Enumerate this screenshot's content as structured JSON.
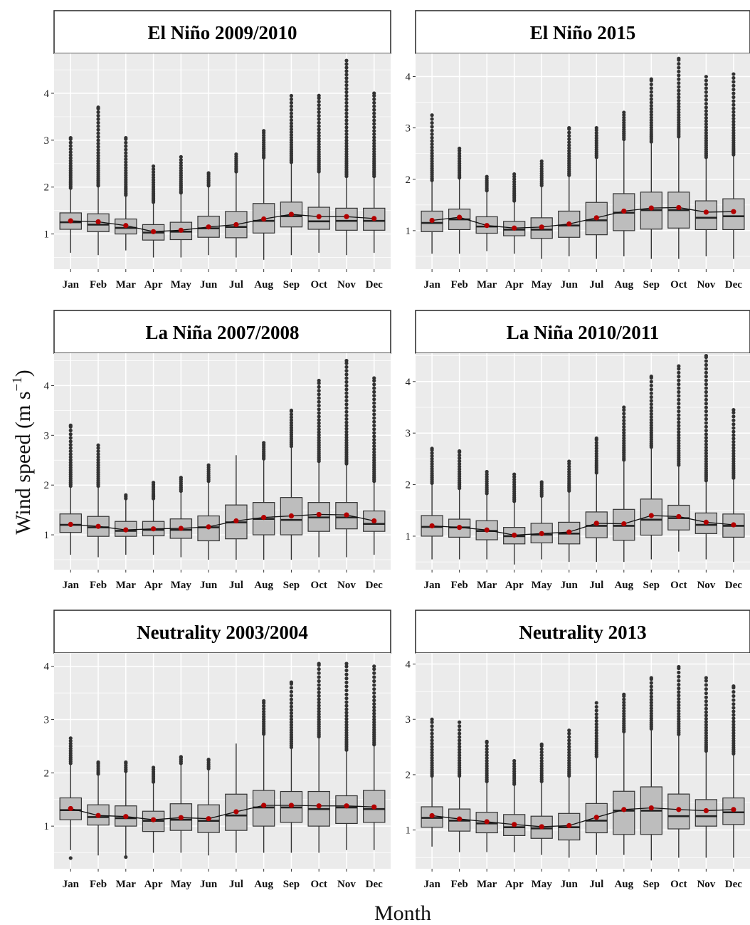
{
  "axes": {
    "ylabel": "Wind speed (m s",
    "ylabel_sup": "−1",
    "ylabel_end": ")",
    "xlabel": "Month"
  },
  "style": {
    "panel_bg": "#ebebeb",
    "grid": "#ffffff",
    "box_fill": "#bdbdbd",
    "box_line": "#333333",
    "outlier": "#333333",
    "mean_point": "#b30000",
    "mean_line": "#111111"
  },
  "chart_data": {
    "type": "boxplot",
    "months": [
      "Jan",
      "Feb",
      "Mar",
      "Apr",
      "May",
      "Jun",
      "Jul",
      "Aug",
      "Sep",
      "Oct",
      "Nov",
      "Dec"
    ],
    "panels": [
      {
        "title": "El Niño 2009/2010",
        "ylim": [
          0.25,
          4.85
        ],
        "yticks": [
          1,
          2,
          3,
          4
        ],
        "boxes": [
          {
            "lw": 0.6,
            "q1": 1.1,
            "med": 1.25,
            "q3": 1.45,
            "uw": 1.95,
            "omax": 3.05,
            "mean": 1.28
          },
          {
            "lw": 0.55,
            "q1": 1.05,
            "med": 1.2,
            "q3": 1.43,
            "uw": 2.0,
            "omax": 3.7,
            "mean": 1.26
          },
          {
            "lw": 0.65,
            "q1": 1.0,
            "med": 1.13,
            "q3": 1.32,
            "uw": 1.8,
            "omax": 3.05,
            "mean": 1.18
          },
          {
            "lw": 0.5,
            "q1": 0.87,
            "med": 1.03,
            "q3": 1.2,
            "uw": 1.65,
            "omax": 2.45,
            "mean": 1.05
          },
          {
            "lw": 0.5,
            "q1": 0.88,
            "med": 1.05,
            "q3": 1.25,
            "uw": 1.85,
            "omax": 2.65,
            "mean": 1.08
          },
          {
            "lw": 0.55,
            "q1": 0.93,
            "med": 1.12,
            "q3": 1.38,
            "uw": 2.0,
            "omax": 2.3,
            "mean": 1.15
          },
          {
            "lw": 0.5,
            "q1": 0.92,
            "med": 1.15,
            "q3": 1.48,
            "uw": 2.3,
            "omax": 2.7,
            "mean": 1.2
          },
          {
            "lw": 0.45,
            "q1": 1.02,
            "med": 1.28,
            "q3": 1.65,
            "uw": 2.6,
            "omax": 3.2,
            "mean": 1.32
          },
          {
            "lw": 0.55,
            "q1": 1.15,
            "med": 1.38,
            "q3": 1.68,
            "uw": 2.5,
            "omax": 3.95,
            "mean": 1.42
          },
          {
            "lw": 0.6,
            "q1": 1.1,
            "med": 1.27,
            "q3": 1.57,
            "uw": 2.3,
            "omax": 3.95,
            "mean": 1.37
          },
          {
            "lw": 0.55,
            "q1": 1.08,
            "med": 1.28,
            "q3": 1.55,
            "uw": 2.2,
            "omax": 4.7,
            "mean": 1.37
          },
          {
            "lw": 0.6,
            "q1": 1.08,
            "med": 1.28,
            "q3": 1.55,
            "uw": 2.2,
            "omax": 4.0,
            "mean": 1.33
          }
        ]
      },
      {
        "title": "El Niño 2015",
        "ylim": [
          0.25,
          4.45
        ],
        "yticks": [
          1,
          2,
          3,
          4
        ],
        "boxes": [
          {
            "lw": 0.55,
            "q1": 0.98,
            "med": 1.15,
            "q3": 1.38,
            "uw": 1.95,
            "omax": 3.25,
            "mean": 1.2
          },
          {
            "lw": 0.55,
            "q1": 1.02,
            "med": 1.22,
            "q3": 1.42,
            "uw": 2.0,
            "omax": 2.6,
            "mean": 1.26
          },
          {
            "lw": 0.6,
            "q1": 0.95,
            "med": 1.08,
            "q3": 1.27,
            "uw": 1.75,
            "omax": 2.05,
            "mean": 1.1
          },
          {
            "lw": 0.55,
            "q1": 0.9,
            "med": 1.02,
            "q3": 1.18,
            "uw": 1.55,
            "omax": 2.1,
            "mean": 1.05
          },
          {
            "lw": 0.45,
            "q1": 0.85,
            "med": 1.02,
            "q3": 1.25,
            "uw": 1.85,
            "omax": 2.35,
            "mean": 1.07
          },
          {
            "lw": 0.5,
            "q1": 0.87,
            "med": 1.1,
            "q3": 1.38,
            "uw": 2.05,
            "omax": 3.0,
            "mean": 1.13
          },
          {
            "lw": 0.45,
            "q1": 0.92,
            "med": 1.2,
            "q3": 1.55,
            "uw": 2.4,
            "omax": 3.0,
            "mean": 1.25
          },
          {
            "lw": 0.5,
            "q1": 1.0,
            "med": 1.35,
            "q3": 1.72,
            "uw": 2.75,
            "omax": 3.3,
            "mean": 1.38
          },
          {
            "lw": 0.45,
            "q1": 1.03,
            "med": 1.4,
            "q3": 1.75,
            "uw": 2.7,
            "omax": 3.95,
            "mean": 1.44
          },
          {
            "lw": 0.45,
            "q1": 1.05,
            "med": 1.4,
            "q3": 1.75,
            "uw": 2.8,
            "omax": 4.35,
            "mean": 1.45
          },
          {
            "lw": 0.5,
            "q1": 1.02,
            "med": 1.25,
            "q3": 1.58,
            "uw": 2.4,
            "omax": 4.0,
            "mean": 1.36
          },
          {
            "lw": 0.45,
            "q1": 1.02,
            "med": 1.28,
            "q3": 1.62,
            "uw": 2.45,
            "omax": 4.05,
            "mean": 1.37
          }
        ]
      },
      {
        "title": "La Niña 2007/2008",
        "ylim": [
          0.3,
          4.65
        ],
        "yticks": [
          1,
          2,
          3,
          4
        ],
        "boxes": [
          {
            "lw": 0.6,
            "q1": 1.05,
            "med": 1.2,
            "q3": 1.42,
            "uw": 1.95,
            "omax": 3.2,
            "mean": 1.21
          },
          {
            "lw": 0.55,
            "q1": 0.97,
            "med": 1.15,
            "q3": 1.37,
            "uw": 1.95,
            "omax": 2.8,
            "mean": 1.17
          },
          {
            "lw": 0.6,
            "q1": 0.97,
            "med": 1.08,
            "q3": 1.27,
            "uw": 1.7,
            "omax": 1.8,
            "mean": 1.1
          },
          {
            "lw": 0.6,
            "q1": 0.98,
            "med": 1.1,
            "q3": 1.27,
            "uw": 1.7,
            "omax": 2.05,
            "mean": 1.12
          },
          {
            "lw": 0.55,
            "q1": 0.93,
            "med": 1.1,
            "q3": 1.32,
            "uw": 1.85,
            "omax": 2.15,
            "mean": 1.13
          },
          {
            "lw": 0.5,
            "q1": 0.88,
            "med": 1.15,
            "q3": 1.38,
            "uw": 2.05,
            "omax": 2.4,
            "mean": 1.16
          },
          {
            "lw": 0.5,
            "q1": 0.92,
            "med": 1.25,
            "q3": 1.6,
            "uw": 2.6,
            "omax": 2.6,
            "mean": 1.28
          },
          {
            "lw": 0.5,
            "q1": 1.0,
            "med": 1.32,
            "q3": 1.65,
            "uw": 2.5,
            "omax": 2.85,
            "mean": 1.35
          },
          {
            "lw": 0.5,
            "q1": 1.0,
            "med": 1.3,
            "q3": 1.75,
            "uw": 2.75,
            "omax": 3.5,
            "mean": 1.38
          },
          {
            "lw": 0.55,
            "q1": 1.07,
            "med": 1.35,
            "q3": 1.65,
            "uw": 2.45,
            "omax": 4.1,
            "mean": 1.41
          },
          {
            "lw": 0.55,
            "q1": 1.12,
            "med": 1.35,
            "q3": 1.65,
            "uw": 2.4,
            "omax": 4.5,
            "mean": 1.4
          },
          {
            "lw": 0.6,
            "q1": 1.07,
            "med": 1.22,
            "q3": 1.48,
            "uw": 2.05,
            "omax": 4.15,
            "mean": 1.28
          }
        ]
      },
      {
        "title": "La Niña 2010/2011",
        "ylim": [
          0.35,
          4.55
        ],
        "yticks": [
          1,
          2,
          3,
          4
        ],
        "boxes": [
          {
            "lw": 0.55,
            "q1": 1.0,
            "med": 1.18,
            "q3": 1.4,
            "uw": 2.0,
            "omax": 2.7,
            "mean": 1.2
          },
          {
            "lw": 0.55,
            "q1": 0.98,
            "med": 1.17,
            "q3": 1.33,
            "uw": 1.9,
            "omax": 2.65,
            "mean": 1.17
          },
          {
            "lw": 0.55,
            "q1": 0.93,
            "med": 1.1,
            "q3": 1.3,
            "uw": 1.8,
            "omax": 2.25,
            "mean": 1.12
          },
          {
            "lw": 0.45,
            "q1": 0.85,
            "med": 1.0,
            "q3": 1.17,
            "uw": 1.65,
            "omax": 2.2,
            "mean": 1.02
          },
          {
            "lw": 0.55,
            "q1": 0.87,
            "med": 1.03,
            "q3": 1.25,
            "uw": 1.75,
            "omax": 2.05,
            "mean": 1.05
          },
          {
            "lw": 0.5,
            "q1": 0.85,
            "med": 1.05,
            "q3": 1.27,
            "uw": 1.85,
            "omax": 2.45,
            "mean": 1.08
          },
          {
            "lw": 0.5,
            "q1": 0.97,
            "med": 1.2,
            "q3": 1.47,
            "uw": 2.2,
            "omax": 2.9,
            "mean": 1.25
          },
          {
            "lw": 0.5,
            "q1": 0.92,
            "med": 1.2,
            "q3": 1.52,
            "uw": 2.45,
            "omax": 3.5,
            "mean": 1.24
          },
          {
            "lw": 0.55,
            "q1": 1.02,
            "med": 1.32,
            "q3": 1.72,
            "uw": 2.7,
            "omax": 4.1,
            "mean": 1.4
          },
          {
            "lw": 0.7,
            "q1": 1.12,
            "med": 1.35,
            "q3": 1.6,
            "uw": 2.35,
            "omax": 4.3,
            "mean": 1.38
          },
          {
            "lw": 0.55,
            "q1": 1.05,
            "med": 1.22,
            "q3": 1.45,
            "uw": 2.05,
            "omax": 4.5,
            "mean": 1.27
          },
          {
            "lw": 0.5,
            "q1": 0.98,
            "med": 1.2,
            "q3": 1.43,
            "uw": 2.1,
            "omax": 3.45,
            "mean": 1.22
          }
        ]
      },
      {
        "title": "Neutrality 2003/2004",
        "ylim": [
          0.2,
          4.25
        ],
        "yticks": [
          1,
          2,
          3,
          4
        ],
        "boxes": [
          {
            "lw": 0.55,
            "q1": 1.12,
            "med": 1.3,
            "q3": 1.53,
            "uw": 2.15,
            "omax": 2.65,
            "mean": 1.33,
            "omin": 0.4
          },
          {
            "lw": 0.45,
            "q1": 1.02,
            "med": 1.17,
            "q3": 1.4,
            "uw": 1.95,
            "omax": 2.2,
            "mean": 1.2
          },
          {
            "lw": 0.45,
            "q1": 1.0,
            "med": 1.15,
            "q3": 1.38,
            "uw": 2.0,
            "omax": 2.2,
            "mean": 1.18,
            "omin": 0.42
          },
          {
            "lw": 0.5,
            "q1": 0.9,
            "med": 1.1,
            "q3": 1.28,
            "uw": 1.8,
            "omax": 2.1,
            "mean": 1.12
          },
          {
            "lw": 0.5,
            "q1": 0.92,
            "med": 1.12,
            "q3": 1.42,
            "uw": 2.15,
            "omax": 2.3,
            "mean": 1.16
          },
          {
            "lw": 0.45,
            "q1": 0.88,
            "med": 1.1,
            "q3": 1.4,
            "uw": 2.05,
            "omax": 2.25,
            "mean": 1.14
          },
          {
            "lw": 0.5,
            "q1": 0.92,
            "med": 1.2,
            "q3": 1.6,
            "uw": 2.55,
            "omax": 2.55,
            "mean": 1.27
          },
          {
            "lw": 0.5,
            "q1": 1.0,
            "med": 1.35,
            "q3": 1.67,
            "uw": 2.7,
            "omax": 3.35,
            "mean": 1.39
          },
          {
            "lw": 0.5,
            "q1": 1.07,
            "med": 1.35,
            "q3": 1.65,
            "uw": 2.45,
            "omax": 3.7,
            "mean": 1.39
          },
          {
            "lw": 0.5,
            "q1": 1.0,
            "med": 1.32,
            "q3": 1.65,
            "uw": 2.65,
            "omax": 4.05,
            "mean": 1.38
          },
          {
            "lw": 0.55,
            "q1": 1.05,
            "med": 1.35,
            "q3": 1.57,
            "uw": 2.4,
            "omax": 4.05,
            "mean": 1.38
          },
          {
            "lw": 0.55,
            "q1": 1.07,
            "med": 1.32,
            "q3": 1.67,
            "uw": 2.5,
            "omax": 4.0,
            "mean": 1.36
          }
        ]
      },
      {
        "title": "Neutrality 2013",
        "ylim": [
          0.3,
          4.2
        ],
        "yticks": [
          1,
          2,
          3,
          4
        ],
        "boxes": [
          {
            "lw": 0.7,
            "q1": 1.05,
            "med": 1.22,
            "q3": 1.42,
            "uw": 1.95,
            "omax": 3.0,
            "mean": 1.26
          },
          {
            "lw": 0.6,
            "q1": 0.98,
            "med": 1.17,
            "q3": 1.38,
            "uw": 1.95,
            "omax": 2.95,
            "mean": 1.2
          },
          {
            "lw": 0.6,
            "q1": 0.95,
            "med": 1.12,
            "q3": 1.32,
            "uw": 1.85,
            "omax": 2.6,
            "mean": 1.15
          },
          {
            "lw": 0.6,
            "q1": 0.9,
            "med": 1.05,
            "q3": 1.28,
            "uw": 1.8,
            "omax": 2.25,
            "mean": 1.1
          },
          {
            "lw": 0.55,
            "q1": 0.85,
            "med": 1.03,
            "q3": 1.25,
            "uw": 1.85,
            "omax": 2.55,
            "mean": 1.06
          },
          {
            "lw": 0.5,
            "q1": 0.82,
            "med": 1.05,
            "q3": 1.3,
            "uw": 1.95,
            "omax": 2.8,
            "mean": 1.08
          },
          {
            "lw": 0.55,
            "q1": 0.95,
            "med": 1.17,
            "q3": 1.48,
            "uw": 2.3,
            "omax": 3.3,
            "mean": 1.23
          },
          {
            "lw": 0.55,
            "q1": 0.92,
            "med": 1.35,
            "q3": 1.7,
            "uw": 2.75,
            "omax": 3.45,
            "mean": 1.37
          },
          {
            "lw": 0.45,
            "q1": 0.92,
            "med": 1.35,
            "q3": 1.78,
            "uw": 2.8,
            "omax": 3.75,
            "mean": 1.4
          },
          {
            "lw": 0.5,
            "q1": 1.02,
            "med": 1.25,
            "q3": 1.65,
            "uw": 2.7,
            "omax": 3.95,
            "mean": 1.37
          },
          {
            "lw": 0.5,
            "q1": 1.07,
            "med": 1.25,
            "q3": 1.55,
            "uw": 2.4,
            "omax": 3.75,
            "mean": 1.35
          },
          {
            "lw": 0.5,
            "q1": 1.1,
            "med": 1.32,
            "q3": 1.58,
            "uw": 2.35,
            "omax": 3.6,
            "mean": 1.37
          }
        ]
      }
    ]
  }
}
